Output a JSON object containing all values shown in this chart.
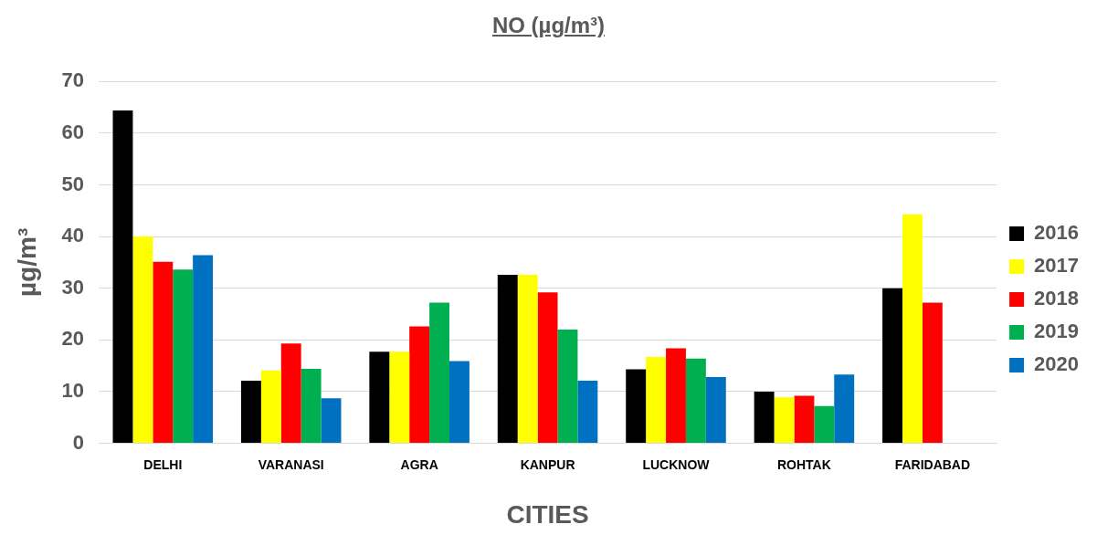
{
  "chart_data": {
    "type": "bar",
    "title": "NO (µg/m³)",
    "xlabel": "CITIES",
    "ylabel": "µg/m³",
    "categories": [
      "DELHI",
      "VARANASI",
      "AGRA",
      "KANPUR",
      "LUCKNOW",
      "ROHTAK",
      "FARIDABAD"
    ],
    "series": [
      {
        "name": "2016",
        "color": "#000000",
        "values": [
          64.4,
          12.1,
          17.7,
          32.6,
          14.3,
          10.0,
          30.0
        ]
      },
      {
        "name": "2017",
        "color": "#ffff00",
        "values": [
          40.0,
          14.1,
          17.7,
          32.6,
          16.7,
          8.9,
          44.3
        ]
      },
      {
        "name": "2018",
        "color": "#ff0000",
        "values": [
          35.1,
          19.3,
          22.6,
          29.2,
          18.4,
          9.2,
          27.2
        ]
      },
      {
        "name": "2019",
        "color": "#00b050",
        "values": [
          33.6,
          14.4,
          27.2,
          22.0,
          16.4,
          7.2,
          null
        ]
      },
      {
        "name": "2020",
        "color": "#0070c0",
        "values": [
          36.4,
          8.7,
          15.9,
          12.1,
          12.8,
          13.3,
          null
        ]
      }
    ],
    "ylim": [
      0,
      70
    ],
    "yticks": [
      0,
      10,
      20,
      30,
      40,
      50,
      60,
      70
    ],
    "grid": "y",
    "legend": "right"
  }
}
